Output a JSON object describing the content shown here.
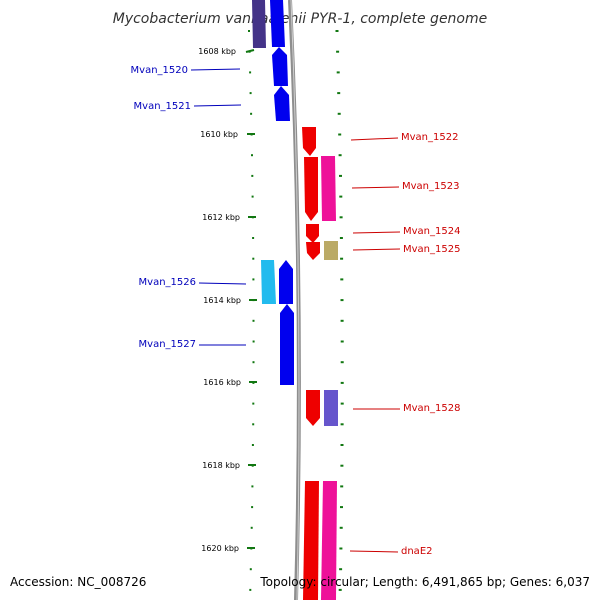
{
  "title": "Mycobacterium vanbaalenii PYR-1, complete genome",
  "footer": {
    "accession": "Accession: NC_008726",
    "summary": "Topology: circular; Length: 6,491,865 bp; Genes: 6,037"
  },
  "ruler": {
    "ticks": [
      "1608 kbp",
      "1610 kbp",
      "1612 kbp",
      "1614 kbp",
      "1616 kbp",
      "1618 kbp",
      "1620 kbp"
    ]
  },
  "colors": {
    "blue": "#0000ee",
    "red": "#ee0000",
    "pink": "#ee1199",
    "cyan": "#22bbee",
    "olive": "#bbaa66",
    "slate": "#6655cc",
    "purple": "#443388",
    "ruler": "#117711",
    "axis": "#999999",
    "label_left": "#0000bb",
    "label_right": "#cc0000"
  },
  "genes": [
    {
      "name": "Mvan_1520",
      "strand": "left"
    },
    {
      "name": "Mvan_1521",
      "strand": "left"
    },
    {
      "name": "Mvan_1522",
      "strand": "right"
    },
    {
      "name": "Mvan_1523",
      "strand": "right"
    },
    {
      "name": "Mvan_1524",
      "strand": "right"
    },
    {
      "name": "Mvan_1525",
      "strand": "right"
    },
    {
      "name": "Mvan_1526",
      "strand": "left"
    },
    {
      "name": "Mvan_1527",
      "strand": "left"
    },
    {
      "name": "Mvan_1528",
      "strand": "right"
    },
    {
      "name": "dnaE2",
      "strand": "right"
    }
  ]
}
